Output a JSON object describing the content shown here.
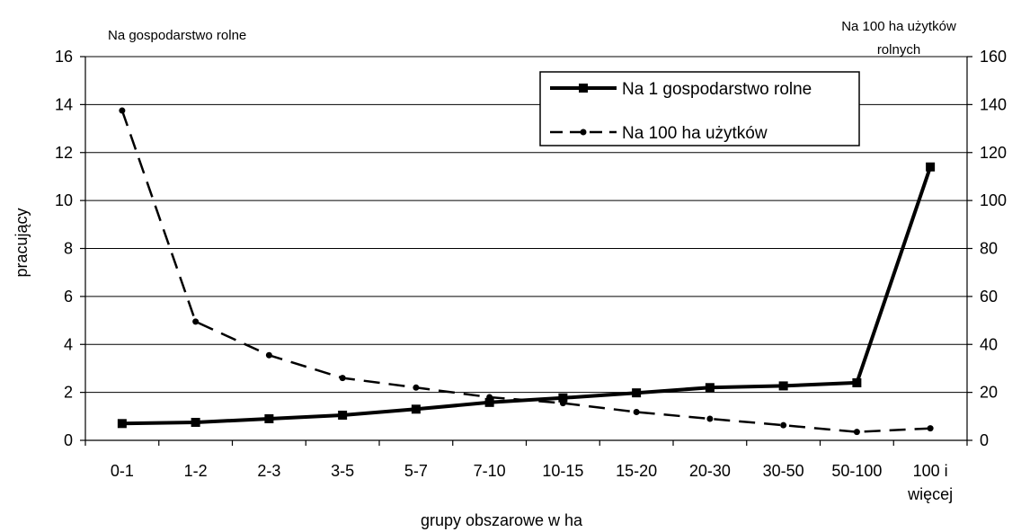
{
  "chart_data": {
    "type": "line",
    "title": "",
    "xlabel": "grupy obszarowe w ha",
    "ylabel": "pracujący",
    "left_axis_caption": "Na gospodarstwo rolne",
    "right_axis_caption_lines": [
      "Na 100 ha użytków",
      "rolnych"
    ],
    "categories": [
      [
        "0-1"
      ],
      [
        "1-2"
      ],
      [
        "2-3"
      ],
      [
        "3-5"
      ],
      [
        "5-7"
      ],
      [
        "7-10"
      ],
      [
        "10-15"
      ],
      [
        "15-20"
      ],
      [
        "20-30"
      ],
      [
        "30-50"
      ],
      [
        "50-100"
      ],
      [
        "100 i",
        "więcej"
      ]
    ],
    "ylim_left": [
      0,
      16
    ],
    "yticks_left": [
      0,
      2,
      4,
      6,
      8,
      10,
      12,
      14,
      16
    ],
    "ylim_right": [
      0,
      160
    ],
    "yticks_right": [
      0,
      20,
      40,
      60,
      80,
      100,
      120,
      140,
      160
    ],
    "grid": true,
    "legend_position": "top-right",
    "series": [
      {
        "name": "Na 1 gospodarstwo rolne",
        "axis": "left",
        "style": "solid",
        "marker": "square",
        "color": "#000000",
        "values": [
          0.7,
          0.75,
          0.9,
          1.05,
          1.3,
          1.58,
          1.77,
          1.98,
          2.2,
          2.27,
          2.4,
          11.4
        ]
      },
      {
        "name": "Na 100 ha użytków",
        "axis": "right",
        "style": "dashed",
        "marker": "dot",
        "color": "#000000",
        "values": [
          137.5,
          49.5,
          35.5,
          26,
          22,
          18,
          15.5,
          11.8,
          9,
          6.3,
          3.5,
          5
        ]
      }
    ]
  }
}
